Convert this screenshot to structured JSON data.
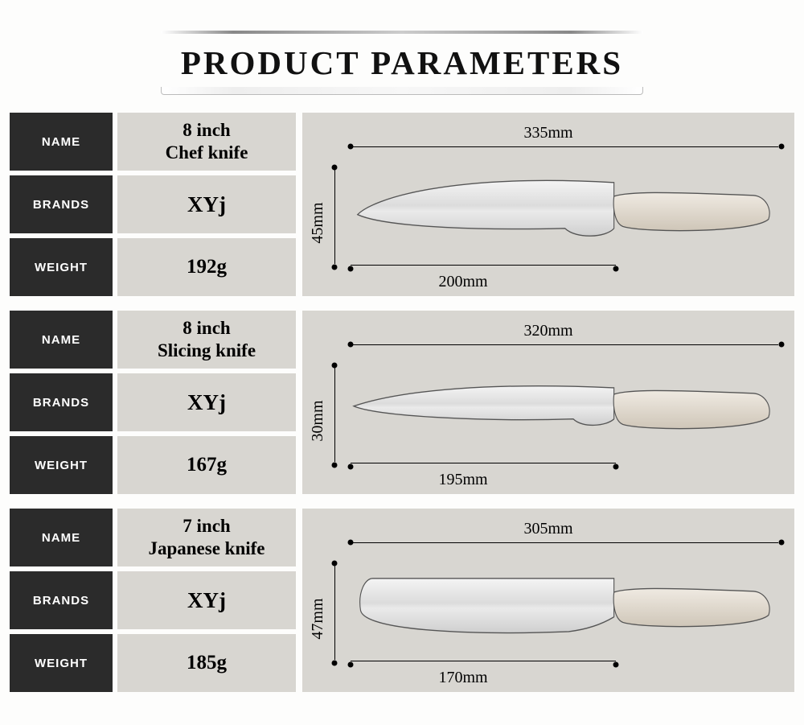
{
  "title": "PRODUCT PARAMETERS",
  "labels": {
    "name": "NAME",
    "brands": "BRANDS",
    "weight": "WEIGHT"
  },
  "colors": {
    "label_bg": "#2b2b2b",
    "value_bg": "#d8d6d1",
    "background": "#fdfdfc",
    "text": "#000000"
  },
  "products": [
    {
      "name_line1": "8 inch",
      "name_line2": "Chef knife",
      "brand": "XYj",
      "weight": "192g",
      "total_length": "335mm",
      "blade_length": "200mm",
      "blade_height": "45mm",
      "shape": "chef"
    },
    {
      "name_line1": "8 inch",
      "name_line2": "Slicing knife",
      "brand": "XYj",
      "weight": "167g",
      "total_length": "320mm",
      "blade_length": "195mm",
      "blade_height": "30mm",
      "shape": "slicing"
    },
    {
      "name_line1": "7 inch",
      "name_line2": "Japanese knife",
      "brand": "XYj",
      "weight": "185g",
      "total_length": "305mm",
      "blade_length": "170mm",
      "blade_height": "47mm",
      "shape": "japanese"
    }
  ]
}
